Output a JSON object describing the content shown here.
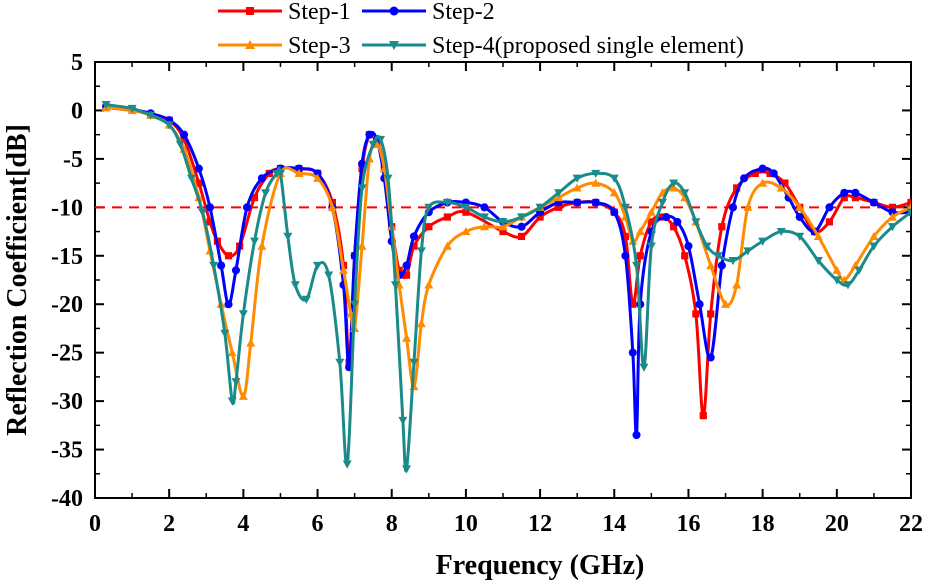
{
  "chart_data": {
    "type": "line",
    "title": "",
    "xlabel": "Frequency (GHz)",
    "ylabel": "Reflection Coefficient[dB]",
    "xlim": [
      0,
      22
    ],
    "ylim": [
      -40,
      5
    ],
    "xticks": [
      0,
      2,
      4,
      6,
      8,
      10,
      12,
      14,
      16,
      18,
      20,
      22
    ],
    "yticks": [
      5,
      0,
      -5,
      -10,
      -15,
      -20,
      -25,
      -30,
      -35,
      -40
    ],
    "grid": false,
    "legend_position": "top-center",
    "reference_line": {
      "y": -10,
      "color": "#ff0000",
      "style": "dashed"
    },
    "series": [
      {
        "name": "Step-1",
        "color": "#ff0000",
        "marker": "square",
        "x": [
          0.3,
          1.0,
          1.5,
          2.0,
          2.4,
          2.8,
          3.1,
          3.3,
          3.6,
          3.9,
          4.3,
          4.7,
          5.0,
          5.5,
          6.0,
          6.4,
          6.7,
          6.85,
          7.0,
          7.2,
          7.4,
          7.6,
          7.8,
          8.0,
          8.2,
          8.4,
          8.6,
          9.0,
          9.5,
          10.0,
          11.0,
          11.5,
          12.0,
          12.5,
          13.0,
          13.5,
          14.0,
          14.3,
          14.5,
          14.7,
          15.0,
          15.3,
          15.6,
          15.9,
          16.2,
          16.4,
          16.6,
          16.9,
          17.3,
          17.8,
          18.2,
          18.6,
          19.0,
          19.4,
          19.8,
          20.2,
          20.5,
          21.0,
          21.5,
          22.0
        ],
        "values": [
          0.3,
          0.0,
          -0.4,
          -1.0,
          -3.0,
          -7.5,
          -11.5,
          -13.5,
          -15.0,
          -14.0,
          -9.0,
          -6.5,
          -6.0,
          -6.0,
          -6.5,
          -9.5,
          -16.0,
          -26.0,
          -15.0,
          -6.0,
          -2.5,
          -3.0,
          -6.0,
          -12.0,
          -16.5,
          -17.0,
          -14.0,
          -12.0,
          -11.0,
          -10.5,
          -12.5,
          -13.0,
          -11.0,
          -10.0,
          -9.5,
          -9.5,
          -10.5,
          -13.0,
          -20.0,
          -15.0,
          -11.5,
          -11.0,
          -12.0,
          -15.0,
          -21.0,
          -31.5,
          -21.0,
          -12.0,
          -8.0,
          -6.5,
          -6.5,
          -7.5,
          -10.0,
          -12.5,
          -11.5,
          -9.0,
          -9.0,
          -9.5,
          -10.0,
          -9.5
        ]
      },
      {
        "name": "Step-2",
        "color": "#0000ff",
        "marker": "circle",
        "x": [
          0.3,
          1.0,
          1.5,
          2.0,
          2.4,
          2.8,
          3.1,
          3.4,
          3.6,
          3.8,
          4.1,
          4.5,
          5.0,
          5.5,
          6.0,
          6.4,
          6.7,
          6.85,
          7.0,
          7.2,
          7.4,
          7.6,
          7.8,
          8.0,
          8.2,
          8.4,
          8.6,
          9.0,
          9.5,
          10.0,
          10.5,
          11.0,
          11.5,
          12.0,
          12.5,
          13.0,
          13.5,
          14.0,
          14.3,
          14.5,
          14.6,
          14.7,
          15.0,
          15.4,
          15.7,
          16.0,
          16.3,
          16.6,
          16.9,
          17.2,
          17.5,
          18.0,
          18.3,
          18.7,
          19.0,
          19.4,
          19.8,
          20.2,
          20.5,
          21.0,
          21.5,
          22.0
        ],
        "values": [
          0.4,
          0.1,
          -0.3,
          -1.0,
          -2.5,
          -6.0,
          -10.0,
          -16.0,
          -20.0,
          -16.5,
          -10.0,
          -7.0,
          -6.0,
          -6.0,
          -6.5,
          -10.0,
          -18.0,
          -26.5,
          -15.0,
          -5.5,
          -2.5,
          -3.0,
          -7.0,
          -13.5,
          -17.0,
          -16.0,
          -13.0,
          -10.5,
          -9.5,
          -9.5,
          -10.0,
          -11.5,
          -12.0,
          -10.5,
          -9.5,
          -9.5,
          -9.5,
          -10.5,
          -15.0,
          -25.0,
          -33.5,
          -20.0,
          -12.5,
          -11.0,
          -11.5,
          -14.0,
          -20.0,
          -25.5,
          -16.0,
          -10.0,
          -7.0,
          -6.0,
          -6.5,
          -9.0,
          -11.0,
          -12.5,
          -10.0,
          -8.5,
          -8.5,
          -9.5,
          -10.5,
          -10.5
        ]
      },
      {
        "name": "Step-3",
        "color": "#ff8c00",
        "marker": "triangle-up",
        "x": [
          0.3,
          1.0,
          1.5,
          2.0,
          2.4,
          2.8,
          3.1,
          3.4,
          3.7,
          4.0,
          4.2,
          4.5,
          5.0,
          5.5,
          6.0,
          6.4,
          6.7,
          6.9,
          7.0,
          7.2,
          7.4,
          7.6,
          7.8,
          8.0,
          8.2,
          8.4,
          8.6,
          8.8,
          9.0,
          9.5,
          10.0,
          10.5,
          11.0,
          11.5,
          12.0,
          12.5,
          13.0,
          13.5,
          14.0,
          14.3,
          14.5,
          14.7,
          15.0,
          15.3,
          15.6,
          15.9,
          16.2,
          16.6,
          17.0,
          17.3,
          17.6,
          18.0,
          18.5,
          19.0,
          19.5,
          20.0,
          20.2,
          20.5,
          21.0,
          21.5,
          22.0
        ],
        "values": [
          0.3,
          0.0,
          -0.5,
          -1.5,
          -4.0,
          -9.0,
          -14.5,
          -20.0,
          -25.0,
          -29.5,
          -24.0,
          -14.0,
          -6.5,
          -6.5,
          -7.0,
          -10.0,
          -16.5,
          -21.0,
          -22.5,
          -14.0,
          -5.0,
          -3.5,
          -6.0,
          -12.0,
          -18.0,
          -23.5,
          -28.5,
          -22.0,
          -18.0,
          -14.0,
          -12.5,
          -12.0,
          -12.0,
          -11.0,
          -10.0,
          -9.0,
          -8.0,
          -7.5,
          -8.5,
          -11.0,
          -13.5,
          -12.5,
          -10.5,
          -8.5,
          -8.0,
          -9.0,
          -11.5,
          -16.0,
          -20.0,
          -18.0,
          -10.0,
          -7.5,
          -8.0,
          -10.0,
          -13.0,
          -16.5,
          -17.5,
          -16.0,
          -13.0,
          -11.0,
          -10.0
        ]
      },
      {
        "name": "Step-4(proposed single element)",
        "color": "#1b8a8a",
        "marker": "triangle-down",
        "x": [
          0.3,
          1.0,
          1.5,
          2.0,
          2.3,
          2.6,
          2.9,
          3.2,
          3.5,
          3.7,
          3.8,
          4.0,
          4.3,
          4.6,
          4.9,
          5.0,
          5.2,
          5.4,
          5.7,
          6.0,
          6.3,
          6.6,
          6.8,
          7.0,
          7.2,
          7.5,
          7.7,
          7.9,
          8.1,
          8.3,
          8.4,
          8.6,
          8.8,
          9.0,
          9.5,
          10.0,
          10.5,
          11.0,
          11.5,
          12.0,
          12.5,
          13.0,
          13.5,
          14.0,
          14.3,
          14.6,
          14.8,
          15.0,
          15.3,
          15.6,
          15.9,
          16.2,
          16.5,
          16.8,
          17.2,
          17.6,
          18.0,
          18.5,
          19.0,
          19.5,
          20.0,
          20.3,
          20.6,
          21.0,
          21.5,
          22.0
        ],
        "values": [
          0.6,
          0.2,
          -0.5,
          -1.5,
          -3.5,
          -7.0,
          -10.5,
          -16.0,
          -23.0,
          -30.0,
          -28.0,
          -21.0,
          -13.5,
          -8.5,
          -6.5,
          -6.5,
          -13.0,
          -18.0,
          -19.5,
          -16.0,
          -17.0,
          -26.0,
          -36.5,
          -20.0,
          -8.0,
          -3.5,
          -3.0,
          -7.0,
          -18.0,
          -32.0,
          -37.0,
          -26.0,
          -14.5,
          -10.0,
          -9.5,
          -10.0,
          -11.0,
          -11.5,
          -11.0,
          -10.0,
          -8.5,
          -7.0,
          -6.5,
          -7.0,
          -10.0,
          -16.0,
          -26.5,
          -14.0,
          -9.5,
          -7.5,
          -8.5,
          -11.5,
          -14.0,
          -15.0,
          -15.5,
          -14.5,
          -13.5,
          -12.5,
          -13.0,
          -15.5,
          -17.5,
          -18.0,
          -16.5,
          -14.0,
          -12.0,
          -10.5
        ]
      }
    ]
  }
}
